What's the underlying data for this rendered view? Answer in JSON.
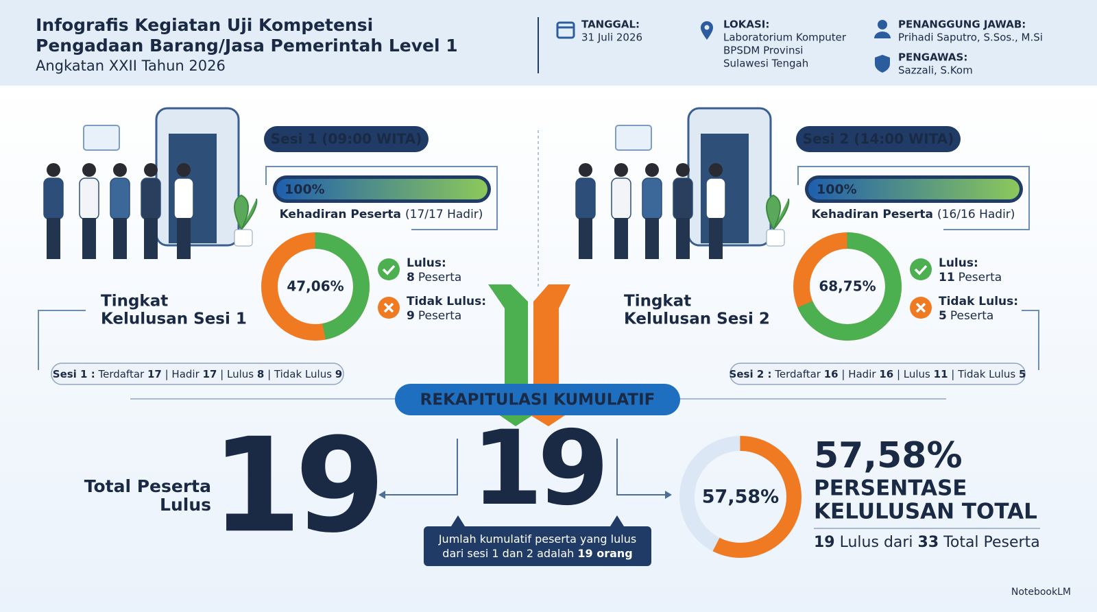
{
  "header": {
    "title": [
      "Infografis Kegiatan Uji Kompetensi",
      "Pengadaan Barang/Jasa Pemerintah Level 1"
    ],
    "subtitle": "Angkatan XXII Tahun 2026",
    "date": {
      "label": "TANGGAL:",
      "lines": [
        "31 Juli 2026"
      ]
    },
    "location": {
      "label": "LOKASI:",
      "lines": [
        "Laboratorium Komputer",
        "BPSDM Provinsi",
        "Sulawesi Tengah"
      ]
    },
    "person_in_charge": {
      "label": "PENANGGUNG JAWAB:",
      "lines": [
        "Prihadi Saputro, S.Sos., M.Si"
      ]
    },
    "supervisor": {
      "label": "PENGAWAS:",
      "lines": [
        "Sazzali, S.Kom"
      ]
    }
  },
  "sessions": [
    {
      "badge": "Sesi 1 (09:00 WITA)",
      "attendance": {
        "value": 100,
        "label": "100%"
      },
      "attendance_title": "Kehadiran Peserta",
      "attendance_detail": "(17/17 Hadir)",
      "heading": [
        "Tingkat",
        "Kelulusan Sesi 1"
      ],
      "pass_rate": {
        "value": 47.06,
        "label": "47,06%"
      },
      "pass": {
        "label": "Lulus:",
        "count": 8,
        "unit": "Peserta"
      },
      "fail": {
        "label": "Tidak Lulus:",
        "count": 9,
        "unit": "Peserta"
      },
      "summary": [
        {
          "text": "Sesi 1 :",
          "bold": true
        },
        {
          "text": " Terdaftar ",
          "bold": false
        },
        {
          "text": "17",
          "bold": true
        },
        {
          "text": " | Hadir ",
          "bold": false
        },
        {
          "text": "17",
          "bold": true
        },
        {
          "text": " | Lulus ",
          "bold": false
        },
        {
          "text": "8",
          "bold": true
        },
        {
          "text": " | Tidak Lulus ",
          "bold": false
        },
        {
          "text": "9",
          "bold": true
        }
      ]
    },
    {
      "badge": "Sesi 2 (14:00 WITA)",
      "attendance": {
        "value": 100,
        "label": "100%"
      },
      "attendance_title": "Kehadiran Peserta",
      "attendance_detail": "(16/16 Hadir)",
      "heading": [
        "Tingkat",
        "Kelulusan Sesi 2"
      ],
      "pass_rate": {
        "value": 68.75,
        "label": "68,75%"
      },
      "pass": {
        "label": "Lulus:",
        "count": 11,
        "unit": "Peserta"
      },
      "fail": {
        "label": "Tidak Lulus:",
        "count": 5,
        "unit": "Peserta"
      },
      "summary": [
        {
          "text": "Sesi 2 :",
          "bold": true
        },
        {
          "text": " Terdaftar ",
          "bold": false
        },
        {
          "text": "16",
          "bold": true
        },
        {
          "text": " | Hadir ",
          "bold": false
        },
        {
          "text": "16",
          "bold": true
        },
        {
          "text": " | Lulus ",
          "bold": false
        },
        {
          "text": "11",
          "bold": true
        },
        {
          "text": " | Tidak Lulus ",
          "bold": false
        },
        {
          "text": "5",
          "bold": true
        }
      ]
    }
  ],
  "recap": {
    "title": "REKAPITULASI KUMULATIF",
    "total_label": [
      "Total Peserta",
      "Lulus"
    ],
    "total_passed": 19,
    "cumulative": 19,
    "caption": [
      [
        {
          "text": "Jumlah kumulatif peserta yang lulus",
          "bold": false
        }
      ],
      [
        {
          "text": "dari sesi 1 dan 2 adalah ",
          "bold": false
        },
        {
          "text": "19 orang",
          "bold": true
        }
      ]
    ],
    "overall_rate": {
      "value": 57.58,
      "label": "57,58%"
    },
    "overall_heading": [
      "PERSENTASE",
      "KELULUSAN TOTAL"
    ],
    "overall_detail": [
      {
        "text": "19",
        "bold": true
      },
      {
        "text": " Lulus dari ",
        "bold": false
      },
      {
        "text": "33",
        "bold": true
      },
      {
        "text": " Total Peserta",
        "bold": false
      }
    ]
  },
  "footer": "NotebookLM"
}
